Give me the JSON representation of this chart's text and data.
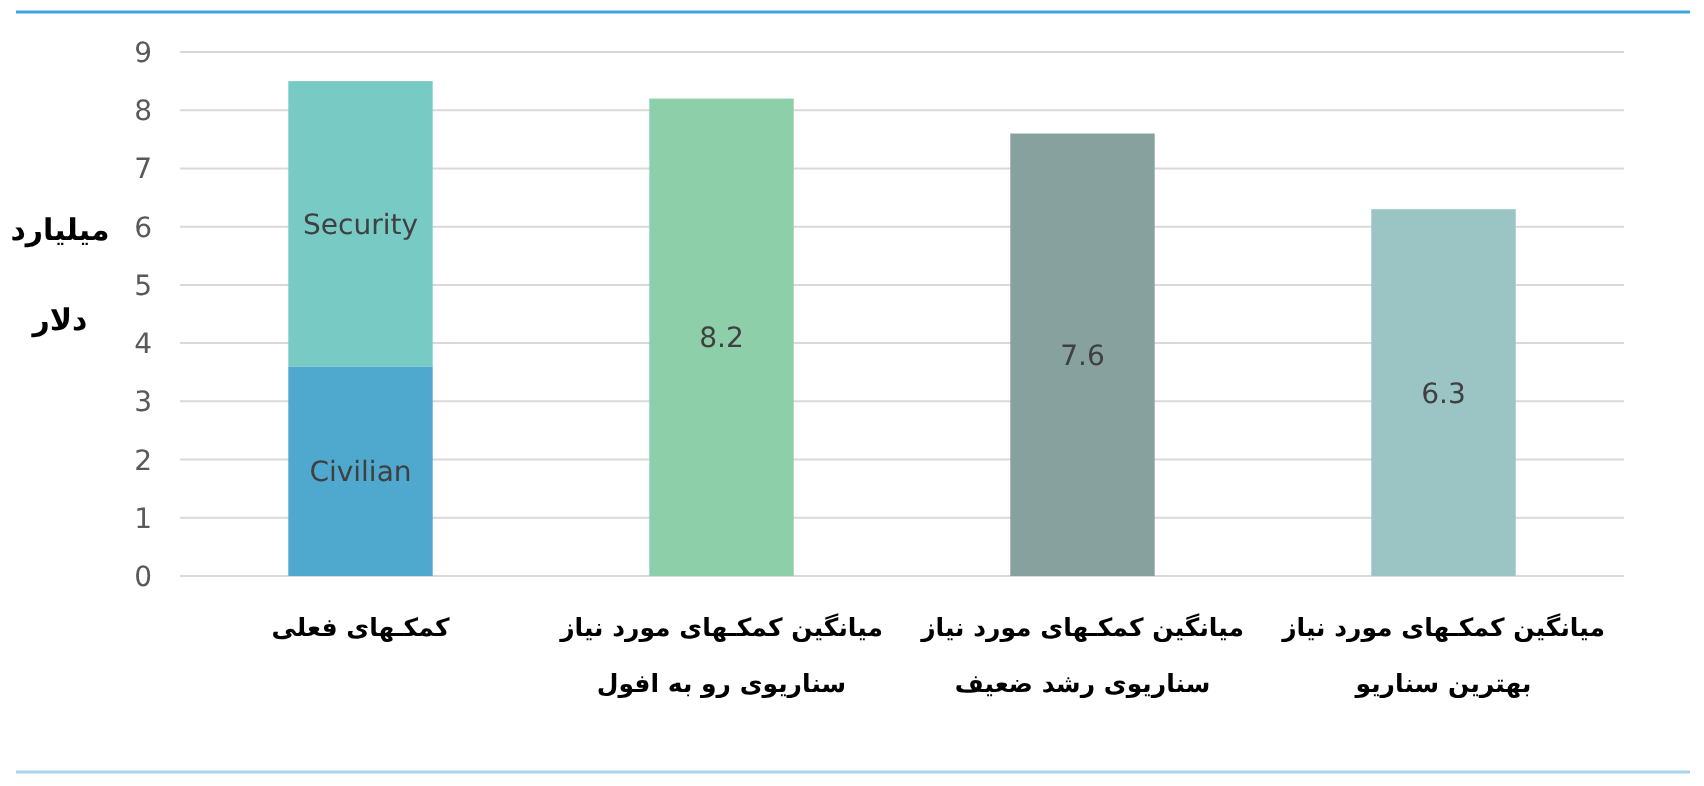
{
  "chart_data": {
    "type": "bar",
    "stacked": true,
    "ylabel": "میلیارد دلار",
    "categories": [
      "کمکـهای فعلی",
      "میانگین کمکـهای مورد نیاز\nسناریوی رو به افول",
      "میانگین کمکـهای مورد نیاز\nسناریوی رشد ضعیف",
      "میانگین کمکـهای مورد نیاز\nبهترین سناریو"
    ],
    "series": [
      {
        "name": "Civilian",
        "color": "#4fa9cf",
        "values": [
          3.6,
          null,
          null,
          null
        ]
      },
      {
        "name": "Security",
        "color": "#78cac5",
        "values": [
          4.9,
          null,
          null,
          null
        ]
      },
      {
        "colors": [
          null,
          "#8ccfa8",
          "#87a19f",
          "#9bc4c5"
        ],
        "values": [
          null,
          8.2,
          7.6,
          6.3
        ],
        "value_labels": [
          null,
          "8.2",
          "7.6",
          "6.3"
        ]
      }
    ],
    "ylim": [
      0,
      9
    ],
    "yticks": [
      0,
      1,
      2,
      3,
      4,
      5,
      6,
      7,
      8,
      9
    ],
    "grid": "y",
    "legend": false
  }
}
